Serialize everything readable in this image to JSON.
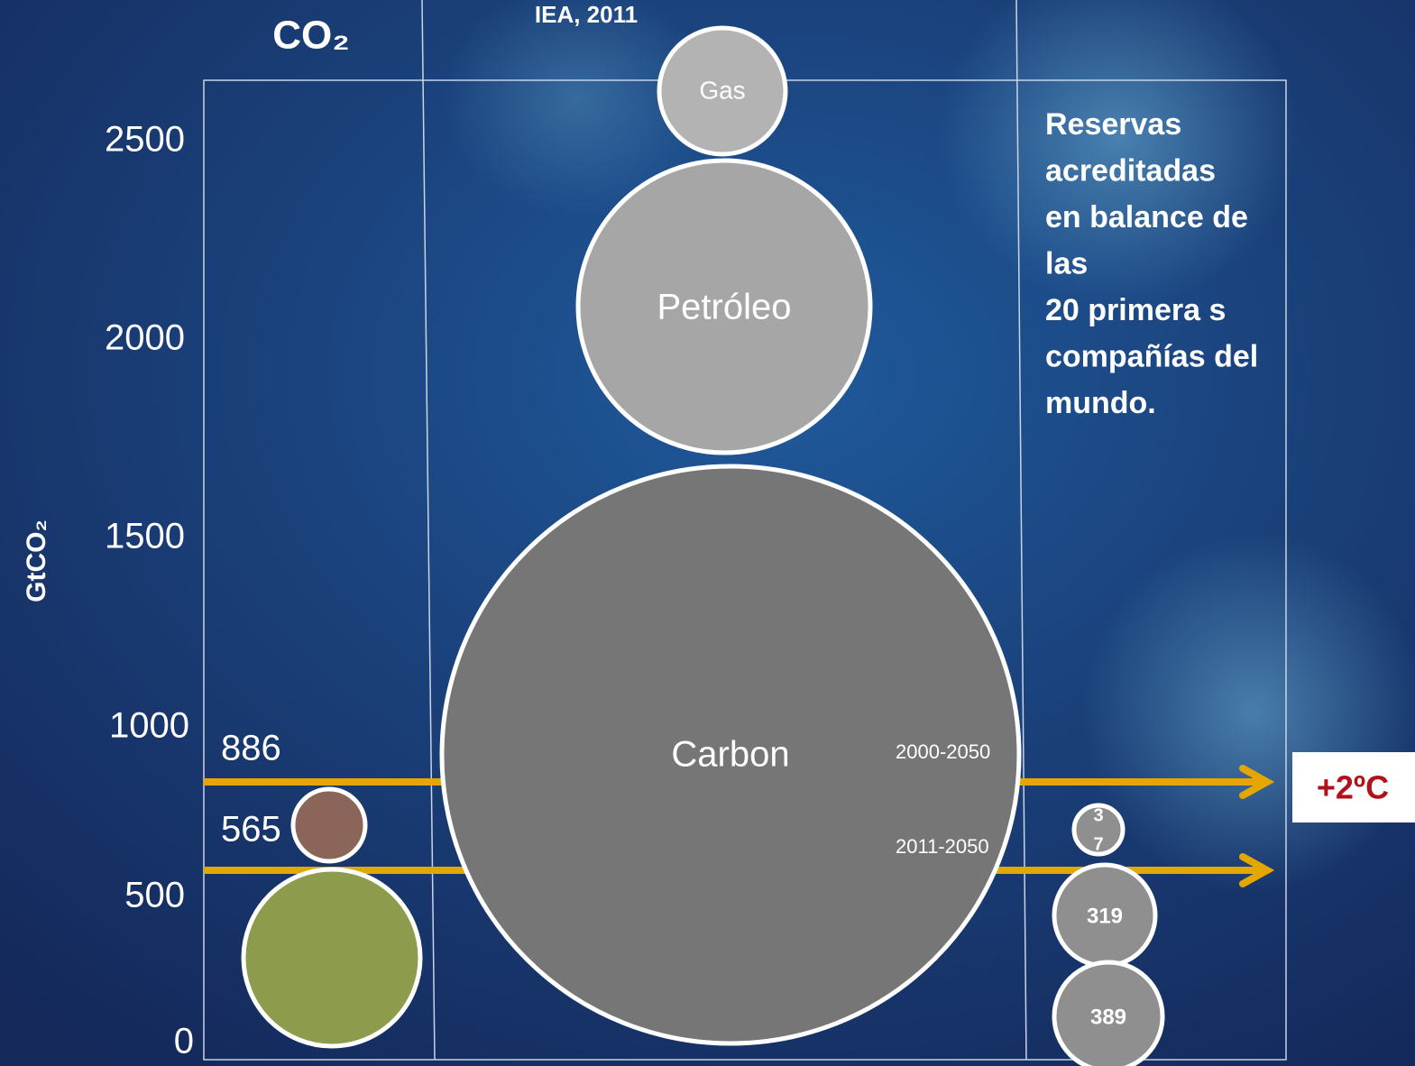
{
  "title": "CO₂",
  "source": "IEA, 2011",
  "y_axis": {
    "label": "GtCO₂",
    "ticks": [
      2500,
      2000,
      1500,
      1000,
      500,
      0
    ]
  },
  "budgets": [
    {
      "value": 886,
      "period": "2000-2050"
    },
    {
      "value": 565,
      "period": "2011-2050"
    }
  ],
  "threshold": "+2ºC",
  "reserves_label": [
    "Reservas",
    "acreditadas",
    "en balance de",
    "las",
    "20 primera s",
    "compañías del",
    "mundo."
  ],
  "bubbles": [
    {
      "label": "Gas"
    },
    {
      "label": "Petróleo"
    },
    {
      "label": "Carbon"
    }
  ],
  "company_bubbles": [
    {
      "lines": [
        "3",
        "7"
      ]
    },
    {
      "lines": [
        "319"
      ]
    },
    {
      "lines": [
        "389"
      ]
    }
  ]
}
